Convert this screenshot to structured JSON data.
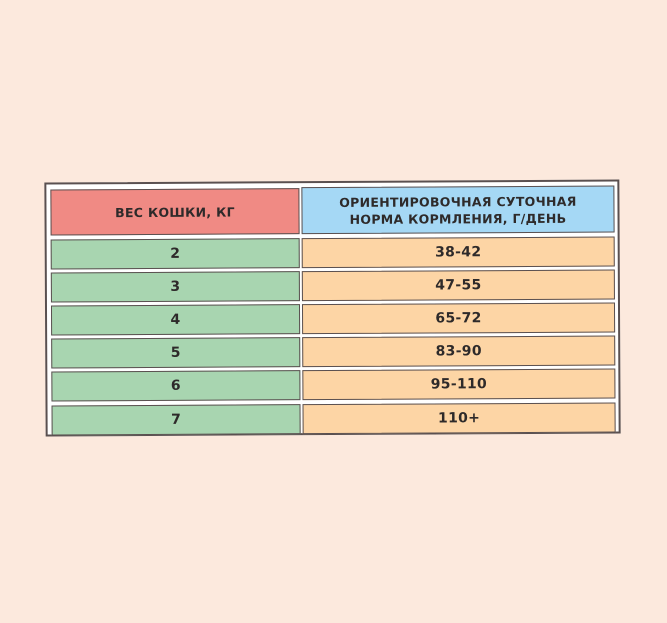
{
  "table": {
    "headers": [
      "ВЕС КОШКИ, КГ",
      "ОРИЕНТИРОВОЧНАЯ СУТОЧНАЯ НОРМА КОРМЛЕНИЯ, Г/ДЕНЬ"
    ],
    "rows": [
      [
        "2",
        "38-42"
      ],
      [
        "3",
        "47-55"
      ],
      [
        "4",
        "65-72"
      ],
      [
        "5",
        "83-90"
      ],
      [
        "6",
        "95-110"
      ],
      [
        "7",
        "110+"
      ]
    ]
  },
  "colors": {
    "background": "#fce9dd",
    "header_left": "#f08a84",
    "header_right": "#a5d8f5",
    "column_left": "#a8d5b0",
    "column_right": "#fdd5a5"
  }
}
